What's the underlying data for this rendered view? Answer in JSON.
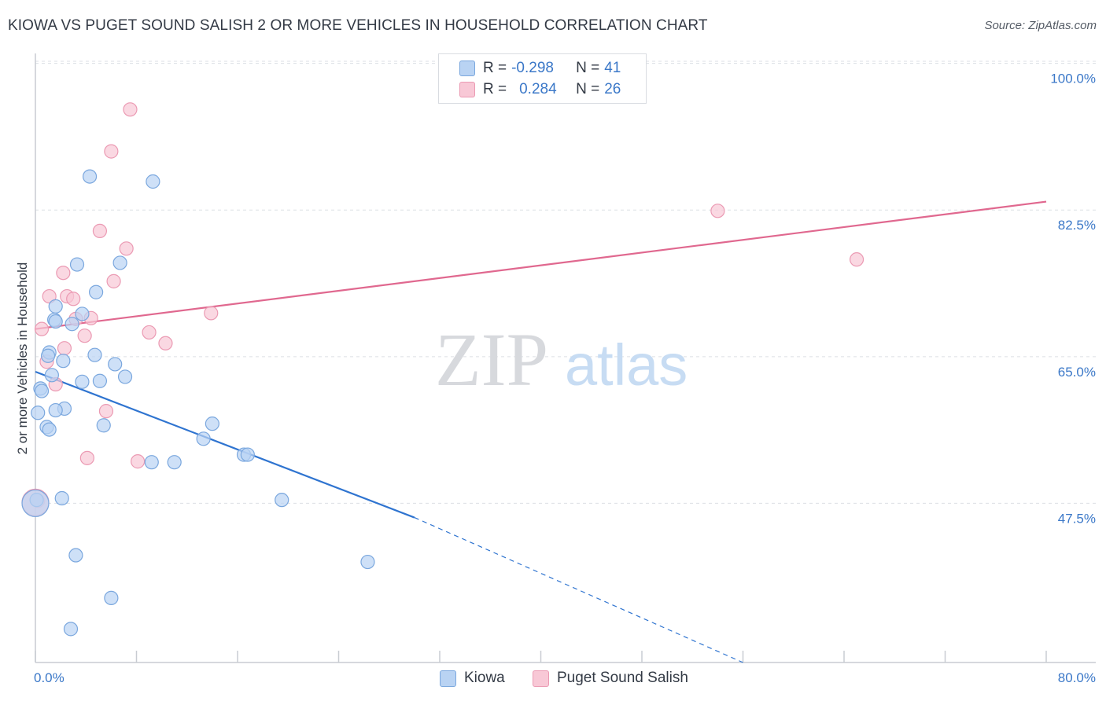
{
  "header": {
    "title": "KIOWA VS PUGET SOUND SALISH 2 OR MORE VEHICLES IN HOUSEHOLD CORRELATION CHART",
    "source": "Source: ZipAtlas.com"
  },
  "watermark": {
    "zip": "ZIP",
    "atlas": "atlas"
  },
  "legend": {
    "rows": [
      {
        "r_key": "R =",
        "r_val": "-0.298",
        "n_key": "N =",
        "n_val": "41"
      },
      {
        "r_key": "R =",
        "r_val": "0.284",
        "n_key": "N =",
        "n_val": "26"
      }
    ]
  },
  "chart_data": {
    "type": "scatter",
    "title": "KIOWA VS PUGET SOUND SALISH 2 OR MORE VEHICLES IN HOUSEHOLD CORRELATION CHART",
    "xlabel": "",
    "ylabel": "2 or more Vehicles in Household",
    "xlim": [
      0,
      80
    ],
    "ylim": [
      28.5,
      101
    ],
    "x_tick_labels": [
      "0.0%",
      "80.0%"
    ],
    "y_ticks": [
      47.5,
      65.0,
      82.5,
      100.0
    ],
    "y_tick_labels": [
      "47.5%",
      "65.0%",
      "82.5%",
      "100.0%"
    ],
    "grid": true,
    "legend_placement": "top-center",
    "colors": {
      "kiowa_fill": "#b9d3f3",
      "kiowa_stroke": "#7aa7de",
      "kiowa_line": "#2f74d0",
      "puget_fill": "#f8c8d6",
      "puget_stroke": "#eb9ab3",
      "puget_line": "#e0688f"
    },
    "series": [
      {
        "name": "Kiowa",
        "r": -0.298,
        "n": 41,
        "trend": {
          "x0": 0.0,
          "y0": 63.2,
          "x1": 30.0,
          "y1": 45.8,
          "dash_x1": 56.0,
          "dash_y1": 28.5
        },
        "points": [
          [
            4.3,
            86.5
          ],
          [
            9.3,
            85.9
          ],
          [
            3.3,
            76.0
          ],
          [
            6.7,
            76.2
          ],
          [
            4.8,
            72.7
          ],
          [
            1.6,
            71.0
          ],
          [
            3.7,
            70.1
          ],
          [
            1.5,
            69.4
          ],
          [
            1.6,
            69.2
          ],
          [
            2.9,
            68.9
          ],
          [
            1.1,
            65.5
          ],
          [
            1.0,
            65.1
          ],
          [
            4.7,
            65.2
          ],
          [
            2.2,
            64.5
          ],
          [
            6.3,
            64.1
          ],
          [
            7.1,
            62.6
          ],
          [
            1.3,
            62.8
          ],
          [
            3.7,
            62.0
          ],
          [
            5.1,
            62.1
          ],
          [
            0.4,
            61.2
          ],
          [
            0.5,
            60.9
          ],
          [
            0.2,
            58.3
          ],
          [
            2.3,
            58.8
          ],
          [
            1.6,
            58.6
          ],
          [
            0.9,
            56.6
          ],
          [
            1.1,
            56.3
          ],
          [
            5.4,
            56.8
          ],
          [
            14.0,
            57.0
          ],
          [
            13.3,
            55.2
          ],
          [
            16.5,
            53.3
          ],
          [
            16.8,
            53.3
          ],
          [
            9.2,
            52.4
          ],
          [
            11.0,
            52.4
          ],
          [
            0.1,
            47.9
          ],
          [
            2.1,
            48.1
          ],
          [
            19.5,
            47.9
          ],
          [
            3.2,
            41.3
          ],
          [
            26.3,
            40.5
          ],
          [
            6.0,
            36.2
          ],
          [
            2.8,
            32.5
          ],
          [
            0.0,
            47.5
          ]
        ]
      },
      {
        "name": "Puget Sound Salish",
        "r": 0.284,
        "n": 26,
        "trend": {
          "x0": 0.0,
          "y0": 68.3,
          "x1": 80.0,
          "y1": 83.5
        },
        "points": [
          [
            7.5,
            94.5
          ],
          [
            6.0,
            89.5
          ],
          [
            5.1,
            80.0
          ],
          [
            7.2,
            77.9
          ],
          [
            2.2,
            75.0
          ],
          [
            6.2,
            74.0
          ],
          [
            1.1,
            72.2
          ],
          [
            2.5,
            72.2
          ],
          [
            3.0,
            71.9
          ],
          [
            13.9,
            70.2
          ],
          [
            4.4,
            69.6
          ],
          [
            3.2,
            69.5
          ],
          [
            0.5,
            68.3
          ],
          [
            2.3,
            66.0
          ],
          [
            3.9,
            67.5
          ],
          [
            9.0,
            67.9
          ],
          [
            10.3,
            66.6
          ],
          [
            0.9,
            64.4
          ],
          [
            1.6,
            61.7
          ],
          [
            5.6,
            58.5
          ],
          [
            4.1,
            52.9
          ],
          [
            8.1,
            52.5
          ],
          [
            54.0,
            82.4
          ],
          [
            65.0,
            76.6
          ],
          [
            0.2,
            47.8
          ],
          [
            0.0,
            47.6
          ]
        ]
      }
    ]
  }
}
